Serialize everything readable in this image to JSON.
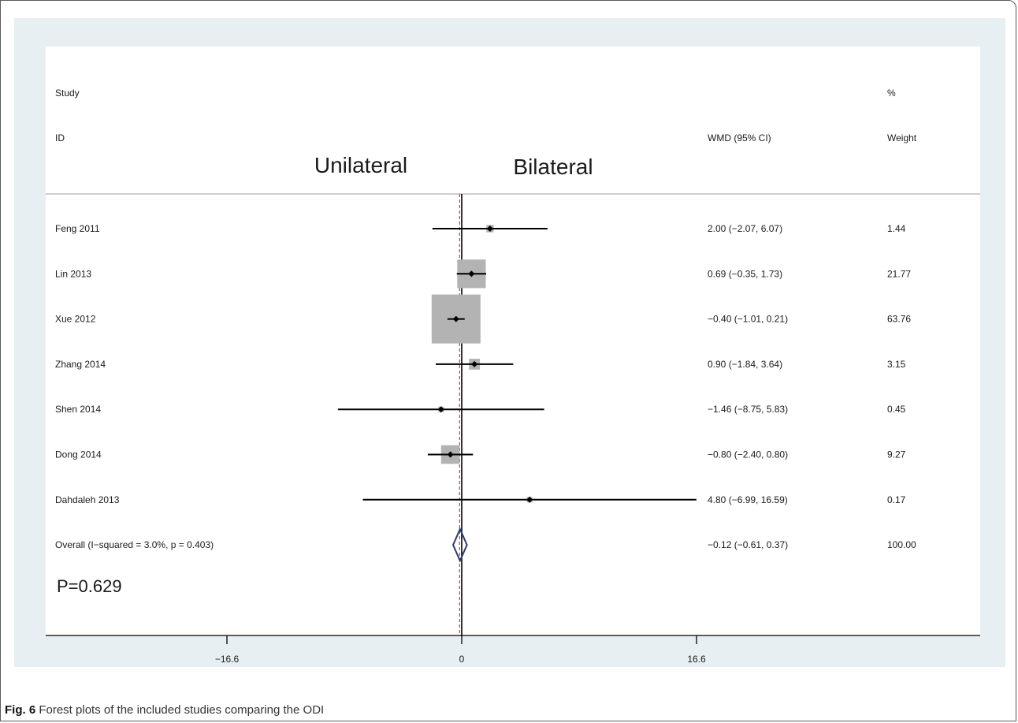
{
  "chart_data": {
    "type": "forest",
    "columns": {
      "study_line1": "Study",
      "study_line2": "ID",
      "effect_header": "WMD (95% CI)",
      "weight_line1": "%",
      "weight_line2": "Weight"
    },
    "direction_left": "Unilateral",
    "direction_right": "Bilateral",
    "xlim": [
      -16.6,
      16.6
    ],
    "ticks": [
      {
        "value": -16.6,
        "label": "−16.6"
      },
      {
        "value": 0,
        "label": "0"
      },
      {
        "value": 16.6,
        "label": "16.6"
      }
    ],
    "studies": [
      {
        "name": "Feng 2011",
        "est": 2.0,
        "lo": -2.07,
        "hi": 6.07,
        "weight": 1.44,
        "ci_text": "2.00 (−2.07, 6.07)",
        "weight_text": "1.44"
      },
      {
        "name": "Lin 2013",
        "est": 0.69,
        "lo": -0.35,
        "hi": 1.73,
        "weight": 21.77,
        "ci_text": "0.69 (−0.35, 1.73)",
        "weight_text": "21.77"
      },
      {
        "name": "Xue 2012",
        "est": -0.4,
        "lo": -1.01,
        "hi": 0.21,
        "weight": 63.76,
        "ci_text": "−0.40 (−1.01, 0.21)",
        "weight_text": "63.76"
      },
      {
        "name": "Zhang 2014",
        "est": 0.9,
        "lo": -1.84,
        "hi": 3.64,
        "weight": 3.15,
        "ci_text": "0.90 (−1.84, 3.64)",
        "weight_text": "3.15"
      },
      {
        "name": "Shen 2014",
        "est": -1.46,
        "lo": -8.75,
        "hi": 5.83,
        "weight": 0.45,
        "ci_text": "−1.46 (−8.75, 5.83)",
        "weight_text": "0.45"
      },
      {
        "name": "Dong 2014",
        "est": -0.8,
        "lo": -2.4,
        "hi": 0.8,
        "weight": 9.27,
        "ci_text": "−0.80 (−2.40, 0.80)",
        "weight_text": "9.27"
      },
      {
        "name": "Dahdaleh 2013",
        "est": 4.8,
        "lo": -6.99,
        "hi": 16.59,
        "weight": 0.17,
        "ci_text": "4.80 (−6.99, 16.59)",
        "weight_text": "0.17"
      }
    ],
    "overall": {
      "label": "Overall  (I−squared = 3.0%, p = 0.403)",
      "est": -0.12,
      "lo": -0.61,
      "hi": 0.37,
      "ci_text": "−0.12 (−0.61, 0.37)",
      "weight_text": "100.00"
    },
    "p_value_text": "P=0.629",
    "colors": {
      "background": "#e8eff2",
      "box": "#b3b3b3",
      "line": "#000000",
      "overall_diamond": "#2b3a6b",
      "ref_line_dashed": "#b5453f"
    }
  },
  "caption": {
    "fig_label": "Fig. 6",
    "text": " Forest plots of the included studies comparing the ODI"
  }
}
